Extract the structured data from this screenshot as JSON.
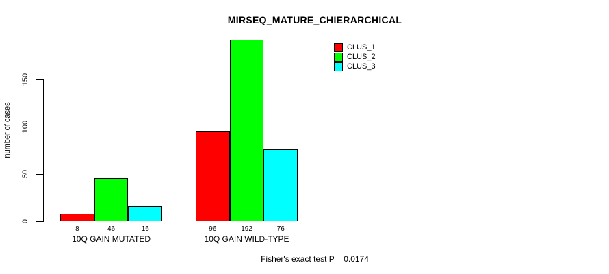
{
  "chart_data": {
    "type": "bar",
    "grouped": true,
    "title": "MIRSEQ_MATURE_CHIERARCHICAL",
    "ylabel": "number of cases",
    "xlabel": "",
    "categories": [
      "10Q GAIN MUTATED",
      "10Q GAIN WILD-TYPE"
    ],
    "series": [
      {
        "name": "CLUS_1",
        "color": "#ff0000",
        "values": [
          8,
          96
        ]
      },
      {
        "name": "CLUS_2",
        "color": "#00ff00",
        "values": [
          46,
          192
        ]
      },
      {
        "name": "CLUS_3",
        "color": "#00ffff",
        "values": [
          16,
          76
        ]
      }
    ],
    "yticks": [
      0,
      50,
      100,
      150
    ],
    "ylim": [
      0,
      195
    ],
    "grid": false,
    "show_value_labels": true,
    "legend_position": "top-right",
    "legend": [
      "CLUS_1",
      "CLUS_2",
      "CLUS_3"
    ],
    "annotation": "Fisher's exact test P = 0.0174",
    "bar_border_color": "#000000",
    "text_color": "#000000",
    "background_color": "#ffffff"
  }
}
